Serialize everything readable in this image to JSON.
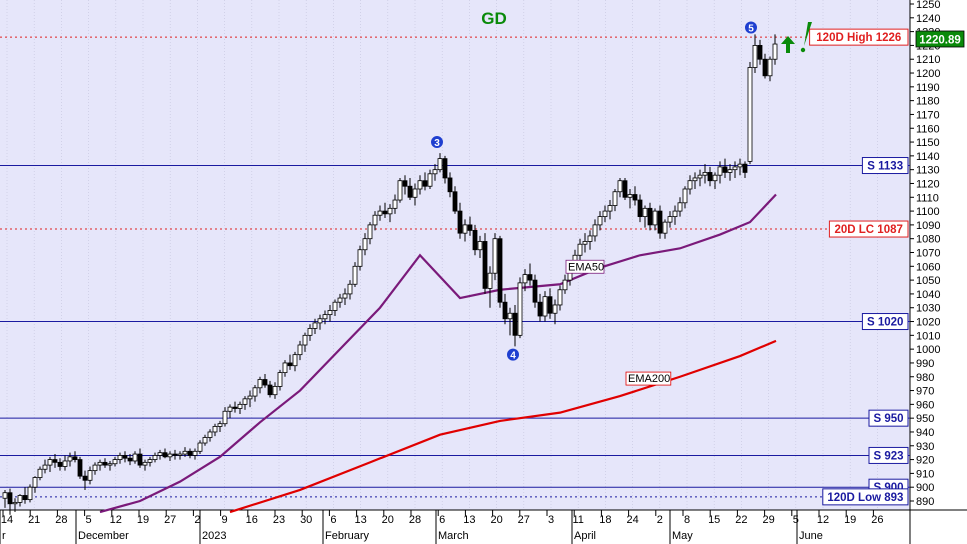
{
  "chart_data": {
    "type": "candlestick",
    "title": "GD",
    "y_ticks": [
      890,
      900,
      910,
      920,
      930,
      940,
      950,
      960,
      970,
      980,
      990,
      1000,
      1010,
      1020,
      1030,
      1040,
      1050,
      1060,
      1070,
      1080,
      1090,
      1100,
      1110,
      1120,
      1130,
      1140,
      1150,
      1160,
      1170,
      1180,
      1190,
      1200,
      1210,
      1220,
      1230,
      1240,
      1250
    ],
    "ylim": [
      880,
      1252
    ],
    "x_tick_labels": [
      "14",
      "21",
      "28",
      "5",
      "12",
      "19",
      "27",
      "2",
      "9",
      "16",
      "23",
      "30",
      "6",
      "13",
      "20",
      "28",
      "6",
      "13",
      "20",
      "27",
      "3",
      "11",
      "18",
      "24",
      "2",
      "8",
      "15",
      "22",
      "29",
      "5",
      "12",
      "19",
      "26"
    ],
    "month_labels": [
      "r",
      "December",
      "2023",
      "February",
      "March",
      "April",
      "May",
      "June"
    ],
    "last_price_label": "1220.89",
    "horizontal_levels": [
      {
        "label": "120D High 1226",
        "value": 1226,
        "style": "dotted",
        "color": "#e02020"
      },
      {
        "label": "S 1133",
        "value": 1133,
        "style": "solid",
        "color": "#1a1aa0"
      },
      {
        "label": "20D LC 1087",
        "value": 1087,
        "style": "dotted",
        "color": "#e02020"
      },
      {
        "label": "S 1020",
        "value": 1020,
        "style": "solid",
        "color": "#1a1aa0"
      },
      {
        "label": "S 950",
        "value": 950,
        "style": "solid",
        "color": "#1a1aa0"
      },
      {
        "label": "S 923",
        "value": 923,
        "style": "solid",
        "color": "#1a1aa0"
      },
      {
        "label": "S 900",
        "value": 900,
        "style": "solid",
        "color": "#1a1aa0"
      },
      {
        "label": "120D Low 893",
        "value": 893,
        "style": "dotted",
        "color": "#1a1aa0"
      }
    ],
    "moving_averages": [
      {
        "name": "EMA50",
        "color": "#7a1a7a",
        "points": [
          [
            100,
            882
          ],
          [
            140,
            890
          ],
          [
            180,
            904
          ],
          [
            220,
            922
          ],
          [
            260,
            947
          ],
          [
            300,
            970
          ],
          [
            340,
            1000
          ],
          [
            380,
            1030
          ],
          [
            420,
            1068
          ],
          [
            460,
            1037
          ],
          [
            500,
            1043
          ],
          [
            560,
            1047
          ],
          [
            600,
            1059
          ],
          [
            640,
            1068
          ],
          [
            680,
            1073
          ],
          [
            720,
            1083
          ],
          [
            750,
            1092
          ],
          [
            776,
            1112
          ]
        ]
      },
      {
        "name": "EMA200",
        "color": "#e00000",
        "points": [
          [
            230,
            882
          ],
          [
            300,
            898
          ],
          [
            370,
            918
          ],
          [
            440,
            938
          ],
          [
            500,
            948
          ],
          [
            560,
            954
          ],
          [
            620,
            966
          ],
          [
            680,
            980
          ],
          [
            740,
            995
          ],
          [
            776,
            1006
          ]
        ]
      }
    ],
    "wave_labels": [
      {
        "label": "3",
        "value": 1150
      },
      {
        "label": "4",
        "value": 996
      },
      {
        "label": "5",
        "value": 1233
      }
    ],
    "candles": [
      [
        5,
        892,
        898,
        885,
        896
      ],
      [
        10,
        896,
        899,
        880,
        888
      ],
      [
        15,
        888,
        892,
        882,
        889
      ],
      [
        20,
        889,
        895,
        886,
        894
      ],
      [
        25,
        894,
        900,
        888,
        891
      ],
      [
        30,
        891,
        902,
        889,
        900
      ],
      [
        35,
        900,
        908,
        896,
        907
      ],
      [
        40,
        907,
        915,
        905,
        913
      ],
      [
        45,
        913,
        920,
        910,
        916
      ],
      [
        50,
        916,
        922,
        911,
        920
      ],
      [
        55,
        920,
        924,
        914,
        918
      ],
      [
        60,
        918,
        921,
        912,
        915
      ],
      [
        65,
        915,
        923,
        912,
        919
      ],
      [
        70,
        919,
        925,
        915,
        922
      ],
      [
        75,
        922,
        926,
        918,
        920
      ],
      [
        80,
        920,
        922,
        906,
        908
      ],
      [
        85,
        908,
        912,
        898,
        905
      ],
      [
        90,
        905,
        915,
        902,
        912
      ],
      [
        95,
        912,
        918,
        909,
        916
      ],
      [
        100,
        916,
        920,
        912,
        918
      ],
      [
        105,
        918,
        921,
        914,
        916
      ],
      [
        110,
        916,
        919,
        912,
        917
      ],
      [
        115,
        917,
        922,
        915,
        920
      ],
      [
        120,
        920,
        925,
        917,
        923
      ],
      [
        125,
        923,
        926,
        918,
        921
      ],
      [
        130,
        921,
        924,
        916,
        919
      ],
      [
        135,
        919,
        926,
        917,
        924
      ],
      [
        140,
        924,
        928,
        914,
        916
      ],
      [
        145,
        916,
        920,
        912,
        918
      ],
      [
        150,
        918,
        922,
        915,
        920
      ],
      [
        155,
        920,
        925,
        918,
        923
      ],
      [
        160,
        923,
        927,
        920,
        925
      ],
      [
        165,
        925,
        928,
        921,
        922
      ],
      [
        170,
        922,
        926,
        919,
        924
      ],
      [
        175,
        924,
        927,
        920,
        923
      ],
      [
        180,
        923,
        926,
        920,
        924
      ],
      [
        185,
        924,
        929,
        922,
        926
      ],
      [
        190,
        926,
        928,
        921,
        923
      ],
      [
        195,
        923,
        928,
        920,
        926
      ],
      [
        200,
        926,
        934,
        924,
        932
      ],
      [
        205,
        932,
        938,
        930,
        936
      ],
      [
        210,
        936,
        942,
        933,
        940
      ],
      [
        215,
        940,
        946,
        937,
        944
      ],
      [
        220,
        944,
        948,
        940,
        946
      ],
      [
        225,
        946,
        958,
        944,
        955
      ],
      [
        230,
        955,
        960,
        950,
        958
      ],
      [
        235,
        958,
        962,
        954,
        957
      ],
      [
        240,
        957,
        962,
        953,
        960
      ],
      [
        245,
        960,
        966,
        956,
        964
      ],
      [
        250,
        964,
        970,
        958,
        966
      ],
      [
        255,
        966,
        974,
        962,
        972
      ],
      [
        260,
        972,
        980,
        968,
        978
      ],
      [
        265,
        978,
        982,
        972,
        974
      ],
      [
        270,
        974,
        977,
        965,
        967
      ],
      [
        275,
        967,
        976,
        964,
        973
      ],
      [
        280,
        973,
        985,
        970,
        983
      ],
      [
        285,
        983,
        992,
        980,
        990
      ],
      [
        290,
        990,
        996,
        985,
        988
      ],
      [
        295,
        988,
        998,
        984,
        996
      ],
      [
        300,
        996,
        1006,
        992,
        1003
      ],
      [
        305,
        1003,
        1012,
        998,
        1010
      ],
      [
        310,
        1010,
        1018,
        1006,
        1015
      ],
      [
        315,
        1015,
        1022,
        1011,
        1019
      ],
      [
        320,
        1019,
        1025,
        1014,
        1022
      ],
      [
        325,
        1022,
        1028,
        1018,
        1025
      ],
      [
        330,
        1025,
        1032,
        1020,
        1028
      ],
      [
        335,
        1028,
        1036,
        1024,
        1034
      ],
      [
        340,
        1034,
        1040,
        1030,
        1037
      ],
      [
        345,
        1037,
        1044,
        1032,
        1040
      ],
      [
        350,
        1040,
        1050,
        1036,
        1047
      ],
      [
        355,
        1047,
        1063,
        1045,
        1060
      ],
      [
        360,
        1060,
        1075,
        1057,
        1072
      ],
      [
        365,
        1072,
        1084,
        1068,
        1080
      ],
      [
        370,
        1080,
        1092,
        1076,
        1090
      ],
      [
        375,
        1090,
        1100,
        1086,
        1097
      ],
      [
        380,
        1097,
        1104,
        1093,
        1100
      ],
      [
        385,
        1100,
        1106,
        1095,
        1098
      ],
      [
        390,
        1098,
        1105,
        1092,
        1102
      ],
      [
        395,
        1102,
        1112,
        1098,
        1108
      ],
      [
        400,
        1108,
        1124,
        1106,
        1122
      ],
      [
        405,
        1122,
        1126,
        1112,
        1118
      ],
      [
        410,
        1118,
        1124,
        1108,
        1110
      ],
      [
        415,
        1110,
        1120,
        1104,
        1116
      ],
      [
        420,
        1116,
        1126,
        1112,
        1122
      ],
      [
        425,
        1122,
        1128,
        1115,
        1118
      ],
      [
        430,
        1118,
        1130,
        1116,
        1127
      ],
      [
        435,
        1127,
        1134,
        1122,
        1130
      ],
      [
        440,
        1130,
        1142,
        1128,
        1138
      ],
      [
        445,
        1138,
        1140,
        1120,
        1124
      ],
      [
        450,
        1124,
        1128,
        1110,
        1114
      ],
      [
        455,
        1114,
        1118,
        1098,
        1100
      ],
      [
        460,
        1100,
        1106,
        1080,
        1084
      ],
      [
        465,
        1084,
        1094,
        1078,
        1090
      ],
      [
        470,
        1090,
        1096,
        1082,
        1086
      ],
      [
        475,
        1086,
        1090,
        1068,
        1072
      ],
      [
        480,
        1072,
        1082,
        1066,
        1078
      ],
      [
        485,
        1078,
        1084,
        1040,
        1044
      ],
      [
        490,
        1044,
        1060,
        1030,
        1055
      ],
      [
        495,
        1055,
        1084,
        1050,
        1080
      ],
      [
        500,
        1080,
        1082,
        1030,
        1034
      ],
      [
        505,
        1034,
        1040,
        1018,
        1022
      ],
      [
        510,
        1022,
        1030,
        1010,
        1026
      ],
      [
        515,
        1026,
        1032,
        1002,
        1010
      ],
      [
        520,
        1010,
        1052,
        1008,
        1048
      ],
      [
        525,
        1048,
        1058,
        1042,
        1054
      ],
      [
        530,
        1054,
        1062,
        1046,
        1050
      ],
      [
        535,
        1050,
        1054,
        1030,
        1034
      ],
      [
        540,
        1034,
        1040,
        1020,
        1024
      ],
      [
        545,
        1024,
        1042,
        1020,
        1038
      ],
      [
        550,
        1038,
        1044,
        1022,
        1026
      ],
      [
        555,
        1026,
        1036,
        1018,
        1032
      ],
      [
        560,
        1032,
        1046,
        1028,
        1043
      ],
      [
        565,
        1043,
        1054,
        1040,
        1050
      ],
      [
        570,
        1050,
        1062,
        1046,
        1060
      ],
      [
        575,
        1060,
        1072,
        1056,
        1068
      ],
      [
        580,
        1068,
        1080,
        1064,
        1076
      ],
      [
        585,
        1076,
        1084,
        1070,
        1078
      ],
      [
        590,
        1078,
        1086,
        1072,
        1082
      ],
      [
        595,
        1082,
        1094,
        1078,
        1090
      ],
      [
        600,
        1090,
        1100,
        1086,
        1096
      ],
      [
        605,
        1096,
        1104,
        1092,
        1100
      ],
      [
        610,
        1100,
        1108,
        1094,
        1104
      ],
      [
        615,
        1104,
        1116,
        1100,
        1114
      ],
      [
        620,
        1114,
        1124,
        1110,
        1122
      ],
      [
        625,
        1122,
        1124,
        1108,
        1110
      ],
      [
        630,
        1110,
        1116,
        1102,
        1112
      ],
      [
        635,
        1112,
        1118,
        1104,
        1108
      ],
      [
        640,
        1108,
        1112,
        1092,
        1096
      ],
      [
        645,
        1096,
        1104,
        1088,
        1102
      ],
      [
        650,
        1102,
        1106,
        1086,
        1090
      ],
      [
        655,
        1090,
        1102,
        1086,
        1100
      ],
      [
        660,
        1100,
        1104,
        1080,
        1084
      ],
      [
        665,
        1084,
        1094,
        1080,
        1092
      ],
      [
        670,
        1092,
        1100,
        1088,
        1096
      ],
      [
        675,
        1096,
        1104,
        1090,
        1100
      ],
      [
        680,
        1100,
        1110,
        1096,
        1106
      ],
      [
        685,
        1106,
        1118,
        1102,
        1116
      ],
      [
        690,
        1116,
        1126,
        1112,
        1122
      ],
      [
        695,
        1122,
        1128,
        1116,
        1124
      ],
      [
        700,
        1124,
        1130,
        1118,
        1126
      ],
      [
        705,
        1126,
        1134,
        1120,
        1128
      ],
      [
        710,
        1128,
        1132,
        1118,
        1122
      ],
      [
        715,
        1122,
        1128,
        1116,
        1126
      ],
      [
        720,
        1126,
        1136,
        1120,
        1132
      ],
      [
        725,
        1132,
        1138,
        1124,
        1128
      ],
      [
        730,
        1128,
        1134,
        1122,
        1130
      ],
      [
        735,
        1130,
        1136,
        1124,
        1132
      ],
      [
        740,
        1132,
        1138,
        1126,
        1134
      ],
      [
        745,
        1134,
        1136,
        1124,
        1128
      ],
      [
        750,
        1136,
        1208,
        1134,
        1204
      ],
      [
        755,
        1204,
        1228,
        1200,
        1220
      ],
      [
        760,
        1220,
        1224,
        1206,
        1210
      ],
      [
        765,
        1210,
        1214,
        1196,
        1198
      ],
      [
        770,
        1198,
        1212,
        1194,
        1210
      ],
      [
        775,
        1210,
        1228,
        1206,
        1221
      ]
    ]
  }
}
